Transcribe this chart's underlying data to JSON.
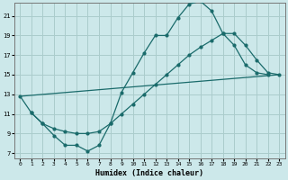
{
  "xlabel": "Humidex (Indice chaleur)",
  "bg_color": "#cce8ea",
  "grid_color": "#aacccc",
  "line_color": "#1a6b6b",
  "xlim": [
    -0.5,
    23.5
  ],
  "ylim": [
    6.5,
    22.3
  ],
  "xticks": [
    0,
    1,
    2,
    3,
    4,
    5,
    6,
    7,
    8,
    9,
    10,
    11,
    12,
    13,
    14,
    15,
    16,
    17,
    18,
    19,
    20,
    21,
    22,
    23
  ],
  "yticks": [
    7,
    9,
    11,
    13,
    15,
    17,
    19,
    21
  ],
  "curve_x": [
    0,
    1,
    2,
    3,
    4,
    5,
    6,
    7,
    8,
    9,
    10,
    11,
    12,
    13,
    14,
    15,
    16,
    17,
    18,
    19,
    20,
    21,
    22
  ],
  "curve_y": [
    12.8,
    11.1,
    10.0,
    8.8,
    7.8,
    7.8,
    7.2,
    7.8,
    10.0,
    13.2,
    15.2,
    17.2,
    19.0,
    19.0,
    20.8,
    22.2,
    22.5,
    21.5,
    19.2,
    18.0,
    16.0,
    15.2,
    15.0
  ],
  "line2_x": [
    1,
    2,
    3,
    4,
    5,
    6,
    7,
    8,
    9,
    10,
    11,
    12,
    13,
    14,
    15,
    16,
    17,
    18,
    19,
    20,
    21,
    22,
    23
  ],
  "line2_y": [
    11.1,
    10.0,
    9.5,
    9.2,
    9.0,
    9.0,
    9.2,
    10.0,
    11.0,
    12.0,
    13.0,
    14.0,
    15.0,
    16.0,
    17.0,
    17.8,
    18.5,
    19.2,
    19.2,
    18.0,
    16.5,
    15.2,
    15.0
  ],
  "line3_x": [
    0,
    23
  ],
  "line3_y": [
    12.8,
    15.0
  ]
}
